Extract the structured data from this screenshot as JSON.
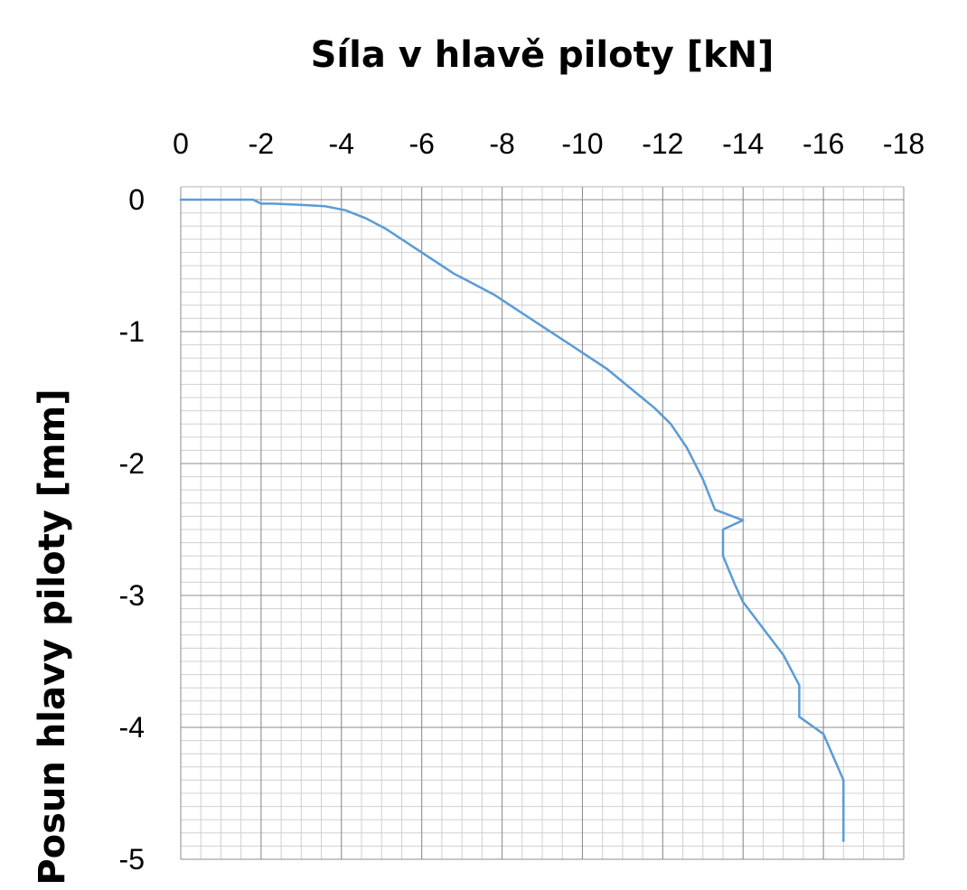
{
  "chart_data": {
    "type": "line",
    "title": "Síla v hlavě piloty [kN]",
    "xlabel": "Síla v hlavě piloty [kN]",
    "ylabel": "Posun hlavy piloty [mm]",
    "x_axis_position": "top",
    "xlim": [
      0,
      -18
    ],
    "ylim": [
      0,
      -5
    ],
    "x_ticks": [
      "0",
      "-2",
      "-4",
      "-6",
      "-8",
      "-10",
      "-12",
      "-14",
      "-16",
      "-18"
    ],
    "y_ticks": [
      "0",
      "-1",
      "-2",
      "-3",
      "-4",
      "-5"
    ],
    "grid": true,
    "minor_grid": true,
    "legend": "none",
    "series_color": "#5b9bd5",
    "series": [
      {
        "x": [
          0,
          -1.8,
          -2.0,
          -2.3,
          -3.0,
          -3.6,
          -4.1,
          -4.6,
          -5.1,
          -5.6,
          -6.0,
          -6.4,
          -6.8,
          -7.3,
          -7.8,
          -8.2,
          -8.6,
          -9.0,
          -9.4,
          -9.8,
          -10.2,
          -10.6,
          -11.0,
          -11.4,
          -11.8,
          -12.2,
          -12.6,
          -13.0,
          -13.3,
          -14.0,
          -13.5,
          -13.5,
          -13.8,
          -14.0,
          -14.5,
          -15.0,
          -15.4,
          -15.4,
          -16.0,
          -16.5,
          -16.5
        ],
        "y": [
          0,
          0,
          -0.03,
          -0.03,
          -0.04,
          -0.05,
          -0.08,
          -0.14,
          -0.22,
          -0.32,
          -0.4,
          -0.48,
          -0.56,
          -0.64,
          -0.72,
          -0.8,
          -0.88,
          -0.96,
          -1.04,
          -1.12,
          -1.2,
          -1.28,
          -1.38,
          -1.48,
          -1.58,
          -1.7,
          -1.88,
          -2.12,
          -2.35,
          -2.43,
          -2.5,
          -2.7,
          -2.92,
          -3.05,
          -3.25,
          -3.45,
          -3.68,
          -3.92,
          -4.05,
          -4.4,
          -4.86
        ]
      }
    ]
  }
}
